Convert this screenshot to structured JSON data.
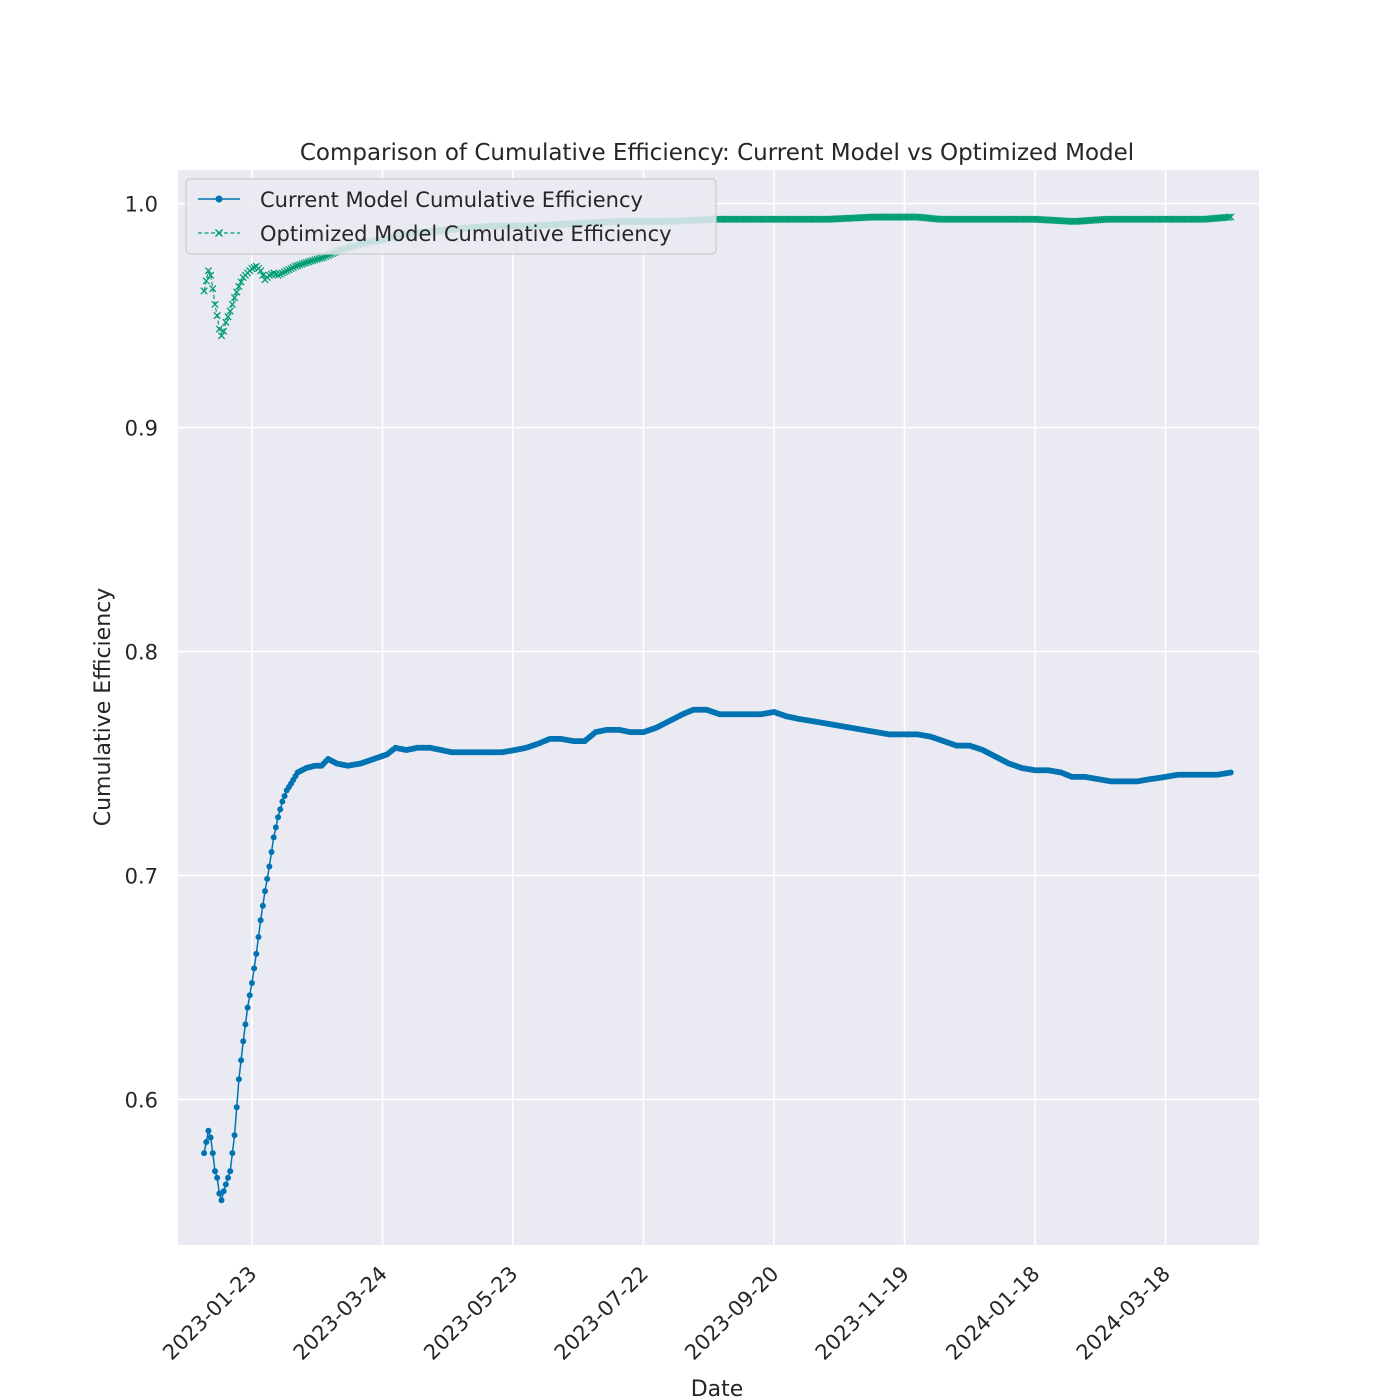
{
  "chart_data": {
    "type": "line",
    "title": "Comparison of Cumulative Efficiency: Current Model vs Optimized Model",
    "xlabel": "Date",
    "ylabel": "Cumulative Efficiency",
    "xlim": [
      "2022-12-20",
      "2024-04-30"
    ],
    "ylim": [
      0.535,
      1.015
    ],
    "x_ticks": [
      "2023-01-23",
      "2023-03-24",
      "2023-05-23",
      "2023-07-22",
      "2023-09-20",
      "2023-11-19",
      "2024-01-18",
      "2024-03-18"
    ],
    "y_ticks": [
      "0.6",
      "0.7",
      "0.8",
      "0.9",
      "1.0"
    ],
    "grid": true,
    "legend_position": "top-left",
    "colors": {
      "current": "#0173b2",
      "optimized": "#029e73",
      "plot_bg": "#eaeaf2",
      "grid": "#ffffff"
    },
    "series": [
      {
        "name": "Current Model Cumulative Efficiency",
        "marker": "dot",
        "line": "solid",
        "points": [
          [
            "2023-01-01",
            0.576
          ],
          [
            "2023-01-03",
            0.586
          ],
          [
            "2023-01-04",
            0.583
          ],
          [
            "2023-01-05",
            0.576
          ],
          [
            "2023-01-06",
            0.568
          ],
          [
            "2023-01-07",
            0.565
          ],
          [
            "2023-01-08",
            0.558
          ],
          [
            "2023-01-09",
            0.555
          ],
          [
            "2023-01-10",
            0.559
          ],
          [
            "2023-01-11",
            0.562
          ],
          [
            "2023-01-13",
            0.568
          ],
          [
            "2023-01-15",
            0.584
          ],
          [
            "2023-01-17",
            0.609
          ],
          [
            "2023-01-19",
            0.626
          ],
          [
            "2023-01-21",
            0.641
          ],
          [
            "2023-01-23",
            0.652
          ],
          [
            "2023-01-25",
            0.665
          ],
          [
            "2023-01-27",
            0.68
          ],
          [
            "2023-01-29",
            0.693
          ],
          [
            "2023-01-31",
            0.704
          ],
          [
            "2023-02-02",
            0.717
          ],
          [
            "2023-02-04",
            0.726
          ],
          [
            "2023-02-06",
            0.733
          ],
          [
            "2023-02-08",
            0.738
          ],
          [
            "2023-02-10",
            0.741
          ],
          [
            "2023-02-13",
            0.746
          ],
          [
            "2023-02-17",
            0.748
          ],
          [
            "2023-02-21",
            0.749
          ],
          [
            "2023-02-24",
            0.749
          ],
          [
            "2023-02-27",
            0.752
          ],
          [
            "2023-03-03",
            0.75
          ],
          [
            "2023-03-08",
            0.749
          ],
          [
            "2023-03-14",
            0.75
          ],
          [
            "2023-03-20",
            0.752
          ],
          [
            "2023-03-26",
            0.754
          ],
          [
            "2023-03-30",
            0.757
          ],
          [
            "2023-04-04",
            0.756
          ],
          [
            "2023-04-09",
            0.757
          ],
          [
            "2023-04-15",
            0.757
          ],
          [
            "2023-04-20",
            0.756
          ],
          [
            "2023-04-25",
            0.755
          ],
          [
            "2023-05-01",
            0.755
          ],
          [
            "2023-05-06",
            0.755
          ],
          [
            "2023-05-12",
            0.755
          ],
          [
            "2023-05-18",
            0.755
          ],
          [
            "2023-05-24",
            0.756
          ],
          [
            "2023-05-29",
            0.757
          ],
          [
            "2023-06-04",
            0.759
          ],
          [
            "2023-06-09",
            0.761
          ],
          [
            "2023-06-14",
            0.761
          ],
          [
            "2023-06-20",
            0.76
          ],
          [
            "2023-06-25",
            0.76
          ],
          [
            "2023-06-30",
            0.764
          ],
          [
            "2023-07-05",
            0.765
          ],
          [
            "2023-07-11",
            0.765
          ],
          [
            "2023-07-16",
            0.764
          ],
          [
            "2023-07-22",
            0.764
          ],
          [
            "2023-07-28",
            0.766
          ],
          [
            "2023-08-03",
            0.769
          ],
          [
            "2023-08-09",
            0.772
          ],
          [
            "2023-08-14",
            0.774
          ],
          [
            "2023-08-20",
            0.774
          ],
          [
            "2023-08-26",
            0.772
          ],
          [
            "2023-09-01",
            0.772
          ],
          [
            "2023-09-08",
            0.772
          ],
          [
            "2023-09-14",
            0.772
          ],
          [
            "2023-09-20",
            0.773
          ],
          [
            "2023-09-26",
            0.771
          ],
          [
            "2023-10-01",
            0.77
          ],
          [
            "2023-10-07",
            0.769
          ],
          [
            "2023-10-13",
            0.768
          ],
          [
            "2023-10-19",
            0.767
          ],
          [
            "2023-10-25",
            0.766
          ],
          [
            "2023-10-31",
            0.765
          ],
          [
            "2023-11-06",
            0.764
          ],
          [
            "2023-11-12",
            0.763
          ],
          [
            "2023-11-19",
            0.763
          ],
          [
            "2023-11-25",
            0.763
          ],
          [
            "2023-12-01",
            0.762
          ],
          [
            "2023-12-07",
            0.76
          ],
          [
            "2023-12-13",
            0.758
          ],
          [
            "2023-12-19",
            0.758
          ],
          [
            "2023-12-25",
            0.756
          ],
          [
            "2023-12-31",
            0.753
          ],
          [
            "2024-01-06",
            0.75
          ],
          [
            "2024-01-12",
            0.748
          ],
          [
            "2024-01-18",
            0.747
          ],
          [
            "2024-01-24",
            0.747
          ],
          [
            "2024-01-30",
            0.746
          ],
          [
            "2024-02-04",
            0.744
          ],
          [
            "2024-02-10",
            0.744
          ],
          [
            "2024-02-16",
            0.743
          ],
          [
            "2024-02-22",
            0.742
          ],
          [
            "2024-02-28",
            0.742
          ],
          [
            "2024-03-05",
            0.742
          ],
          [
            "2024-03-11",
            0.743
          ],
          [
            "2024-03-18",
            0.744
          ],
          [
            "2024-03-24",
            0.745
          ],
          [
            "2024-03-30",
            0.745
          ],
          [
            "2024-04-05",
            0.745
          ],
          [
            "2024-04-11",
            0.745
          ],
          [
            "2024-04-17",
            0.746
          ]
        ]
      },
      {
        "name": "Optimized Model Cumulative Efficiency",
        "marker": "x",
        "line": "dashed",
        "points": [
          [
            "2023-01-01",
            0.961
          ],
          [
            "2023-01-03",
            0.97
          ],
          [
            "2023-01-04",
            0.968
          ],
          [
            "2023-01-05",
            0.962
          ],
          [
            "2023-01-06",
            0.955
          ],
          [
            "2023-01-07",
            0.95
          ],
          [
            "2023-01-08",
            0.944
          ],
          [
            "2023-01-09",
            0.941
          ],
          [
            "2023-01-10",
            0.943
          ],
          [
            "2023-01-11",
            0.947
          ],
          [
            "2023-01-13",
            0.952
          ],
          [
            "2023-01-15",
            0.958
          ],
          [
            "2023-01-17",
            0.963
          ],
          [
            "2023-01-19",
            0.967
          ],
          [
            "2023-01-21",
            0.969
          ],
          [
            "2023-01-23",
            0.971
          ],
          [
            "2023-01-25",
            0.972
          ],
          [
            "2023-01-27",
            0.97
          ],
          [
            "2023-01-29",
            0.966
          ],
          [
            "2023-01-31",
            0.968
          ],
          [
            "2023-02-02",
            0.969
          ],
          [
            "2023-02-04",
            0.968
          ],
          [
            "2023-02-06",
            0.969
          ],
          [
            "2023-02-08",
            0.97
          ],
          [
            "2023-02-12",
            0.972
          ],
          [
            "2023-02-18",
            0.974
          ],
          [
            "2023-02-25",
            0.976
          ],
          [
            "2023-03-04",
            0.979
          ],
          [
            "2023-03-11",
            0.981
          ],
          [
            "2023-03-18",
            0.983
          ],
          [
            "2023-03-25",
            0.984
          ],
          [
            "2023-04-01",
            0.986
          ],
          [
            "2023-04-10",
            0.987
          ],
          [
            "2023-04-20",
            0.988
          ],
          [
            "2023-05-01",
            0.989
          ],
          [
            "2023-05-15",
            0.99
          ],
          [
            "2023-06-01",
            0.99
          ],
          [
            "2023-06-20",
            0.991
          ],
          [
            "2023-07-10",
            0.992
          ],
          [
            "2023-08-01",
            0.992
          ],
          [
            "2023-08-25",
            0.993
          ],
          [
            "2023-09-20",
            0.993
          ],
          [
            "2023-10-15",
            0.993
          ],
          [
            "2023-11-05",
            0.994
          ],
          [
            "2023-11-25",
            0.994
          ],
          [
            "2023-12-05",
            0.993
          ],
          [
            "2023-12-20",
            0.993
          ],
          [
            "2024-01-01",
            0.993
          ],
          [
            "2024-01-18",
            0.993
          ],
          [
            "2024-02-05",
            0.992
          ],
          [
            "2024-02-20",
            0.993
          ],
          [
            "2024-03-05",
            0.993
          ],
          [
            "2024-03-20",
            0.993
          ],
          [
            "2024-04-05",
            0.993
          ],
          [
            "2024-04-17",
            0.994
          ]
        ]
      }
    ]
  }
}
